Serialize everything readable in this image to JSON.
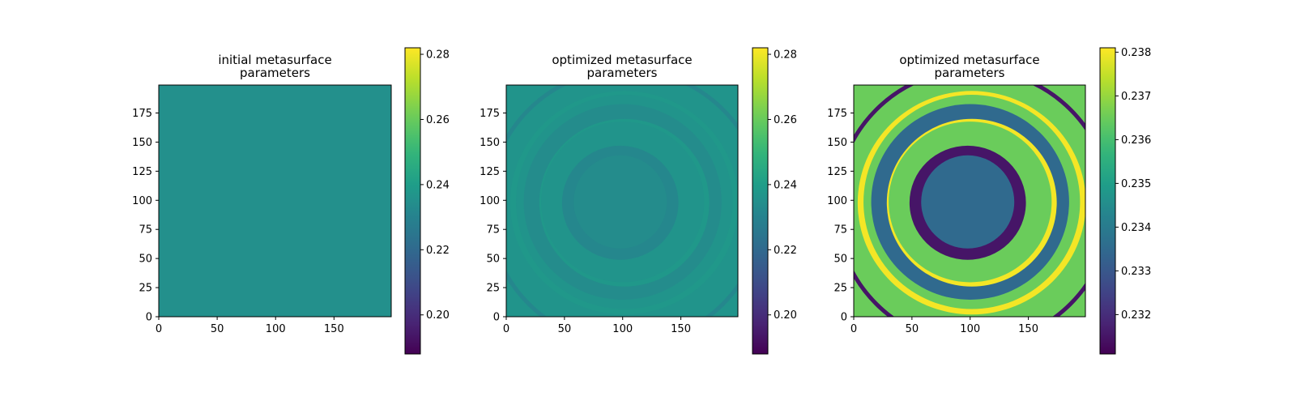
{
  "chart_data": [
    {
      "type": "heatmap",
      "title_lines": [
        "initial metasurface",
        "parameters"
      ],
      "xlim": [
        0,
        199
      ],
      "ylim": [
        199,
        0
      ],
      "xticks": [
        0,
        50,
        100,
        150
      ],
      "yticks": [
        0,
        25,
        50,
        75,
        100,
        125,
        150,
        175
      ],
      "colorbar": {
        "min": 0.188,
        "max": 0.282,
        "ticks": [
          "0.20",
          "0.22",
          "0.24",
          "0.26",
          "0.28"
        ]
      },
      "field": {
        "kind": "uniform",
        "value": 0.235
      }
    },
    {
      "type": "heatmap",
      "title_lines": [
        "optimized metasurface",
        "parameters"
      ],
      "xlim": [
        0,
        199
      ],
      "ylim": [
        199,
        0
      ],
      "xticks": [
        0,
        50,
        100,
        150
      ],
      "yticks": [
        0,
        25,
        50,
        75,
        100,
        125,
        150,
        175
      ],
      "colorbar": {
        "min": 0.188,
        "max": 0.282,
        "ticks": [
          "0.20",
          "0.22",
          "0.24",
          "0.26",
          "0.28"
        ]
      },
      "field": {
        "kind": "rings",
        "center": [
          100,
          100
        ],
        "values": {
          "center": 0.2335,
          "inner_band": 0.2315,
          "mid_band": 0.2365,
          "outer_band": 0.2335,
          "edge": 0.2365,
          "thin_ring": 0.238
        }
      }
    },
    {
      "type": "heatmap",
      "title_lines": [
        "optimized metasurface",
        "parameters"
      ],
      "xlim": [
        0,
        199
      ],
      "ylim": [
        199,
        0
      ],
      "xticks": [
        0,
        50,
        100,
        150
      ],
      "yticks": [
        0,
        25,
        50,
        75,
        100,
        125,
        150,
        175
      ],
      "colorbar": {
        "min": 0.2311,
        "max": 0.2381,
        "ticks": [
          "0.232",
          "0.233",
          "0.234",
          "0.235",
          "0.236",
          "0.237",
          "0.238"
        ]
      },
      "field": {
        "kind": "rings",
        "center": [
          100,
          100
        ],
        "values": {
          "center": 0.2335,
          "inner_band": 0.2315,
          "mid_band": 0.2365,
          "outer_band": 0.2335,
          "edge": 0.2365,
          "thin_ring": 0.238
        }
      }
    }
  ]
}
